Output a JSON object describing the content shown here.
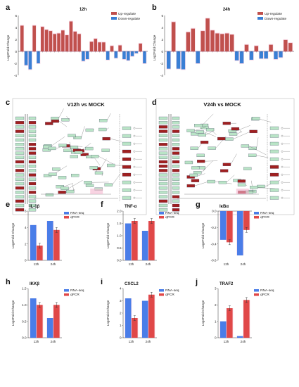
{
  "panels": {
    "a": {
      "label": "a",
      "title": "12h",
      "ylabel": "Log2Fold Change",
      "yticks": [
        "6",
        "4",
        "2",
        "0",
        "-2",
        "-4"
      ],
      "legend": [
        "Up-regulate",
        "Down-regulate"
      ]
    },
    "b": {
      "label": "b",
      "title": "24h",
      "ylabel": "Log2Fold Change",
      "yticks": [
        "6",
        "4",
        "2",
        "0",
        "-2",
        "-4"
      ],
      "legend": [
        "Up-regulate",
        "Down-regulate"
      ]
    },
    "c": {
      "label": "c",
      "title": "V12h  vs MOCK"
    },
    "d": {
      "label": "d",
      "title": "V24h vs MOCK"
    }
  },
  "colors": {
    "up": "#c0504d",
    "down": "#3a7fd5",
    "rnaseq": "#4a7de8",
    "qpcr": "#e04848",
    "hilite": "#f4b6cf",
    "kegg_box": "#b9e4c6",
    "kegg_red": "#a02020"
  },
  "chart_data": [
    {
      "panel": "a",
      "type": "bar",
      "title": "12h",
      "ylabel": "Log2Fold Change",
      "ylim": [
        -4,
        6
      ],
      "values": [
        4.3,
        -2.3,
        -3.0,
        4.3,
        -2.0,
        4.1,
        3.6,
        3.4,
        2.9,
        3.0,
        3.5,
        2.7,
        5.0,
        3.3,
        2.9,
        -1.6,
        -1.3,
        1.6,
        2.1,
        1.5,
        1.5,
        -1.4,
        0.9,
        -1.1,
        1.0,
        -1.3,
        -1.5,
        -0.8,
        -0.3,
        1.3,
        -2.0
      ],
      "legend": [
        "Up-regulate",
        "Down-regulate"
      ],
      "legend_position": "top-right"
    },
    {
      "panel": "b",
      "type": "bar",
      "title": "24h",
      "ylabel": "Log2Fold Change",
      "ylim": [
        -4,
        6
      ],
      "values": [
        -2.9,
        4.9,
        -2.9,
        -3.0,
        3.2,
        3.8,
        -2.0,
        3.4,
        5.5,
        3.5,
        3.0,
        2.9,
        3.0,
        2.8,
        -1.5,
        -2.0,
        1.1,
        -1.4,
        0.9,
        -1.2,
        -1.2,
        1.1,
        -1.3,
        -1.0,
        1.9,
        1.4
      ],
      "legend": [
        "Up-regulate",
        "Down-regulate"
      ],
      "legend_position": "top-right"
    },
    {
      "panel": "e",
      "label": "e",
      "type": "bar",
      "title": "IL-1β",
      "ylabel": "Log2Fold Change",
      "categories": [
        "12h",
        "24h"
      ],
      "ylim": [
        0,
        6
      ],
      "yticks": [
        "0",
        "2",
        "4",
        "6"
      ],
      "series": [
        {
          "name": "RNA-seq",
          "values": [
            4.3,
            4.8
          ]
        },
        {
          "name": "qPCR",
          "values": [
            1.8,
            3.7
          ]
        }
      ],
      "legend_position": "top-right"
    },
    {
      "panel": "f",
      "label": "f",
      "type": "bar",
      "title": "TNF-α",
      "ylabel": "Log2Fold Change",
      "categories": [
        "12h",
        "24h"
      ],
      "ylim": [
        0,
        2.0
      ],
      "yticks": [
        "0.0",
        "0.5",
        "1.0",
        "1.5",
        "2.0"
      ],
      "series": [
        {
          "name": "RNA-seq",
          "values": [
            1.5,
            1.2
          ]
        },
        {
          "name": "qPCR",
          "values": [
            1.6,
            1.6
          ]
        }
      ],
      "legend_position": "top-right"
    },
    {
      "panel": "g",
      "label": "g",
      "type": "bar",
      "title": "IκBα",
      "ylabel": "Log2Fold Change",
      "categories": [
        "12h",
        "24h"
      ],
      "ylim": [
        -0.6,
        0.0
      ],
      "yticks": [
        "0.0",
        "-0.2",
        "-0.4",
        "-0.6"
      ],
      "series": [
        {
          "name": "RNA-seq",
          "values": [
            -0.35,
            -0.54
          ]
        },
        {
          "name": "qPCR",
          "values": [
            -0.38,
            -0.23
          ]
        }
      ],
      "legend_position": "top-right"
    },
    {
      "panel": "h",
      "label": "h",
      "type": "bar",
      "title": "IKKβ",
      "ylabel": "Log2Fold Change",
      "categories": [
        "12h",
        "24h"
      ],
      "ylim": [
        0,
        1.5
      ],
      "yticks": [
        "0.0",
        "0.5",
        "1.0",
        "1.5"
      ],
      "series": [
        {
          "name": "RNA-seq",
          "values": [
            1.2,
            0.6
          ]
        },
        {
          "name": "qPCR",
          "values": [
            1.0,
            1.0
          ]
        }
      ],
      "legend_position": "top-right"
    },
    {
      "panel": "i",
      "label": "i",
      "type": "bar",
      "title": "CXCL2",
      "ylabel": "Log2Fold Change",
      "categories": [
        "12h",
        "24h"
      ],
      "ylim": [
        0,
        4
      ],
      "yticks": [
        "0",
        "1",
        "2",
        "3",
        "4"
      ],
      "series": [
        {
          "name": "RNA-seq",
          "values": [
            3.2,
            3.0
          ]
        },
        {
          "name": "qPCR",
          "values": [
            1.6,
            3.5
          ]
        }
      ],
      "legend_position": "top-right"
    },
    {
      "panel": "j",
      "label": "j",
      "type": "bar",
      "title": "TRAF2",
      "ylabel": "Log2Fold Change",
      "categories": [
        "12h",
        "24h"
      ],
      "ylim": [
        0,
        3
      ],
      "yticks": [
        "0",
        "1",
        "2",
        "3"
      ],
      "series": [
        {
          "name": "RNA-seq",
          "values": [
            1.0,
            0.1
          ]
        },
        {
          "name": "qPCR",
          "values": [
            1.8,
            2.3
          ]
        }
      ],
      "legend_position": "top-right"
    }
  ]
}
